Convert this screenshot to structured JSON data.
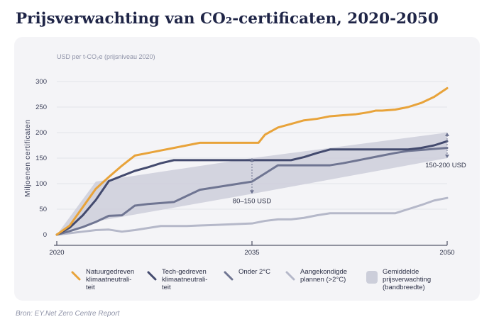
{
  "title": "Prijsverwachting van CO₂-certificaten, 2020-2050",
  "source": "Bron: EY.Net Zero Centre Report",
  "chart_data": {
    "type": "line",
    "unit_label": "USD per t-CO₂e (prijsniveau 2020)",
    "ylabel": "Miljoenen certificaten",
    "xlim": [
      2020,
      2050
    ],
    "ylim": [
      0,
      300
    ],
    "yticks": [
      0,
      50,
      100,
      150,
      200,
      250,
      300
    ],
    "xticks": [
      2020,
      2035,
      2050
    ],
    "series": [
      {
        "name": "Natuurgedreven klimaatneutraliteit",
        "color": "#e8a33a",
        "x": [
          2020,
          2021,
          2022,
          2023,
          2024,
          2025,
          2025.5,
          2026,
          2027,
          2028,
          2029,
          2030,
          2031,
          2032,
          2033,
          2034,
          2035,
          2035.5,
          2036,
          2037,
          2038,
          2039,
          2040,
          2041,
          2042,
          2043,
          2044,
          2044.5,
          2045,
          2046,
          2047,
          2048,
          2049,
          2050
        ],
        "y": [
          0,
          18,
          54,
          90,
          113,
          135,
          145,
          155,
          160,
          165,
          170,
          175,
          180,
          180,
          180,
          180,
          180,
          180,
          196,
          210,
          217,
          224,
          227,
          232,
          234,
          236,
          240,
          243,
          243,
          245,
          250,
          258,
          270,
          287
        ]
      },
      {
        "name": "Tech-gedreven klimaatneutraliteit",
        "color": "#434a6e",
        "x": [
          2020,
          2021,
          2022,
          2023,
          2024,
          2025,
          2026,
          2027,
          2028,
          2029,
          2030,
          2031,
          2032,
          2033,
          2034,
          2035,
          2036,
          2037,
          2038,
          2039,
          2040,
          2041,
          2042,
          2043,
          2044,
          2045,
          2046,
          2047,
          2048,
          2049,
          2050
        ],
        "y": [
          0,
          14,
          38,
          68,
          105,
          115,
          125,
          132,
          140,
          146,
          146,
          146,
          146,
          146,
          146,
          146,
          146,
          146,
          146,
          152,
          160,
          167,
          167,
          167,
          167,
          167,
          167,
          167,
          170,
          175,
          183
        ]
      },
      {
        "name": "Onder 2°C",
        "color": "#6f7592",
        "x": [
          2020,
          2021,
          2022,
          2023,
          2024,
          2025,
          2026,
          2027,
          2028,
          2029,
          2030,
          2031,
          2032,
          2033,
          2034,
          2035,
          2036,
          2037,
          2038,
          2039,
          2040,
          2041,
          2042,
          2043,
          2044,
          2045,
          2046,
          2047,
          2048,
          2049,
          2050
        ],
        "y": [
          0,
          7,
          15,
          25,
          37,
          38,
          57,
          60,
          62,
          64,
          76,
          88,
          92,
          96,
          100,
          104,
          120,
          136,
          136,
          136,
          136,
          136,
          140,
          145,
          150,
          155,
          160,
          164,
          166,
          168,
          170
        ]
      },
      {
        "name": "Aangekondigde plannen (>2°C)",
        "color": "#b5b8c9",
        "x": [
          2020,
          2021,
          2022,
          2023,
          2024,
          2025,
          2026,
          2027,
          2028,
          2029,
          2030,
          2031,
          2032,
          2033,
          2034,
          2035,
          2036,
          2037,
          2038,
          2039,
          2040,
          2041,
          2042,
          2043,
          2044,
          2045,
          2046,
          2047,
          2048,
          2049,
          2050
        ],
        "y": [
          0,
          3,
          6,
          9,
          10,
          6,
          9,
          13,
          17,
          17,
          17,
          18,
          19,
          20,
          21,
          22,
          27,
          30,
          30,
          33,
          38,
          42,
          42,
          42,
          42,
          42,
          42,
          50,
          58,
          67,
          72
        ]
      }
    ],
    "band": {
      "name": "Gemiddelde prijsverwachting (bandbreedte)",
      "color": "#ccceda",
      "x": [
        2020,
        2023,
        2035,
        2050
      ],
      "lower": [
        0,
        26,
        80,
        150
      ],
      "upper": [
        0,
        104,
        150,
        200
      ]
    },
    "annotations": [
      {
        "text": "80–150 USD",
        "x": 2035,
        "from": 80,
        "to": 150
      },
      {
        "text": "150-200 USD",
        "x": 2050,
        "from": 150,
        "to": 200
      }
    ]
  },
  "legend": [
    {
      "label": "Natuurgedreven\nklimaatneutrali-\nteit",
      "kind": "line",
      "color": "#e8a33a"
    },
    {
      "label": "Tech-gedreven\nklimaatneutrali-\nteit",
      "kind": "line",
      "color": "#434a6e"
    },
    {
      "label": "Onder 2°C",
      "kind": "line",
      "color": "#6f7592"
    },
    {
      "label": "Aangekondigde\nplannen (>2°C)",
      "kind": "line",
      "color": "#b5b8c9"
    },
    {
      "label": "Gemiddelde\nprijsverwachting\n(bandbreedte)",
      "kind": "band",
      "color": "#ccceda"
    }
  ]
}
